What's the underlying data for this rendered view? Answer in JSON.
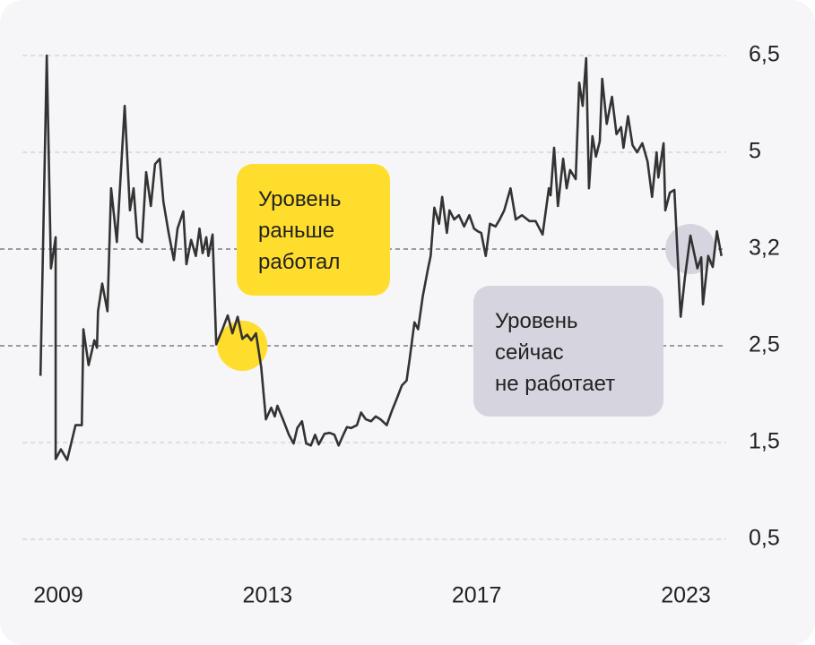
{
  "chart_data": {
    "type": "line",
    "color": "#333333",
    "x": [
      2008.66,
      2008.78,
      2008.86,
      2008.95,
      2008.95,
      2009.05,
      2009.17,
      2009.33,
      2009.45,
      2009.48,
      2009.58,
      2009.69,
      2009.74,
      2009.76,
      2009.84,
      2009.94,
      2010.01,
      2010.12,
      2010.27,
      2010.37,
      2010.44,
      2010.51,
      2010.6,
      2010.68,
      2010.77,
      2010.85,
      2010.94,
      2011.01,
      2011.11,
      2011.21,
      2011.28,
      2011.39,
      2011.45,
      2011.54,
      2011.63,
      2011.7,
      2011.76,
      2011.83,
      2011.87,
      2011.95,
      2012.02,
      2012.14,
      2012.24,
      2012.33,
      2012.43,
      2012.52,
      2012.61,
      2012.69,
      2012.78,
      2012.88,
      2012.97,
      2013.07,
      2013.14,
      2013.19,
      2013.31,
      2013.41,
      2013.5,
      2013.57,
      2013.66,
      2013.74,
      2013.83,
      2013.91,
      2013.98,
      2014.09,
      2014.19,
      2014.28,
      2014.36,
      2014.45,
      2014.52,
      2014.6,
      2014.71,
      2014.79,
      2014.88,
      2014.98,
      2015.07,
      2015.16,
      2015.28,
      2015.38,
      2015.47,
      2015.57,
      2015.66,
      2015.72,
      2015.81,
      2015.88,
      2015.97,
      2016.07,
      2016.12,
      2016.19,
      2016.28,
      2016.34,
      2016.43,
      2016.48,
      2016.57,
      2016.66,
      2016.76,
      2016.86,
      2016.95,
      2017.03,
      2017.13,
      2017.26,
      2017.38,
      2017.54,
      2017.66,
      2017.79,
      2017.97,
      2018.12,
      2018.3,
      2018.51,
      2018.69,
      2018.89,
      2019.07,
      2019.12,
      2019.22,
      2019.33,
      2019.48,
      2019.58,
      2019.68,
      2019.84,
      2019.94,
      2020.04,
      2020.14,
      2020.22,
      2020.32,
      2020.42,
      2020.53,
      2020.6,
      2020.73,
      2020.88,
      2021.01,
      2021.14,
      2021.21,
      2021.34,
      2021.47,
      2021.6,
      2021.75,
      2021.9,
      2022.03,
      2022.16,
      2022.21,
      2022.36,
      2022.41,
      2022.54,
      2022.67,
      2022.85,
      2022.97,
      2023.13,
      2023.33,
      2023.44,
      2023.49,
      2023.64,
      2023.77,
      2023.89,
      2024.02
    ],
    "values": [
      2.19,
      6.5,
      3.06,
      3.42,
      1.33,
      1.43,
      1.32,
      1.68,
      1.68,
      2.62,
      2.3,
      2.54,
      2.48,
      2.75,
      2.95,
      2.75,
      4.33,
      3.33,
      5.72,
      3.92,
      4.33,
      3.42,
      3.33,
      4.63,
      4.0,
      4.78,
      4.88,
      4.08,
      3.5,
      3.12,
      3.58,
      3.9,
      3.09,
      3.37,
      3.15,
      3.58,
      3.17,
      3.42,
      3.15,
      3.47,
      2.51,
      2.62,
      2.72,
      2.59,
      2.71,
      2.55,
      2.58,
      2.54,
      2.59,
      2.28,
      1.74,
      1.86,
      1.77,
      1.88,
      1.72,
      1.58,
      1.49,
      1.65,
      1.72,
      1.49,
      1.47,
      1.58,
      1.48,
      1.59,
      1.6,
      1.58,
      1.47,
      1.58,
      1.66,
      1.65,
      1.68,
      1.81,
      1.74,
      1.72,
      1.77,
      1.74,
      1.68,
      1.83,
      1.95,
      2.09,
      2.14,
      2.37,
      2.67,
      2.62,
      2.86,
      3.06,
      3.15,
      3.97,
      3.67,
      4.17,
      3.5,
      3.92,
      3.75,
      3.83,
      3.62,
      3.83,
      3.58,
      3.53,
      3.5,
      3.15,
      3.67,
      3.62,
      3.75,
      3.92,
      4.33,
      3.75,
      3.83,
      3.72,
      3.72,
      3.47,
      4.33,
      4.2,
      5.07,
      4.0,
      4.88,
      4.33,
      4.67,
      4.5,
      6.08,
      5.72,
      6.46,
      4.33,
      5.25,
      4.92,
      5.17,
      6.14,
      5.44,
      5.86,
      5.28,
      5.39,
      5.07,
      5.56,
      5.11,
      5.0,
      5.14,
      4.83,
      4.17,
      5.0,
      4.53,
      5.14,
      3.92,
      4.25,
      4.3,
      2.71,
      2.99,
      3.45,
      3.06,
      3.14,
      2.8,
      3.15,
      3.07,
      3.53,
      3.15
    ],
    "xlim": [
      2008.66,
      2024.02
    ],
    "xticks": [
      2009,
      2013,
      2017,
      2023
    ],
    "ylim": [
      0.5,
      6.5
    ],
    "yticks": [
      {
        "value": 0.5,
        "label": "0,5"
      },
      {
        "value": 1.5,
        "label": "1,5"
      },
      {
        "value": 2.5,
        "label": "2,5"
      },
      {
        "value": 3.2,
        "label": "3,2"
      },
      5,
      {
        "value": 6.5,
        "label": "6,5"
      }
    ],
    "grid": true,
    "annotations": [
      {
        "text": [
          "Уровень",
          "раньше",
          "работал"
        ],
        "x": 2012.52,
        "level": 2.5,
        "color": "#ffdd2d"
      },
      {
        "text": [
          "Уровень",
          "сейчас",
          "не работает"
        ],
        "x": 2023.13,
        "level": 3.2,
        "color": "#d6d4de"
      }
    ]
  }
}
